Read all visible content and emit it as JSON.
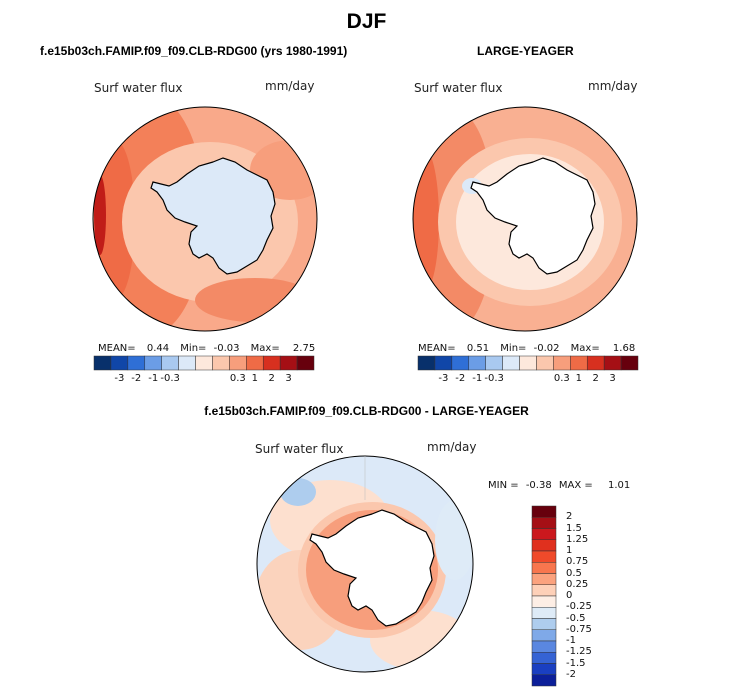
{
  "page": {
    "title": "DJF"
  },
  "chart_data": [
    {
      "type": "heatmap",
      "projection": "south-polar-stereographic",
      "header": "f.e15b03ch.FAMIP.f09_f09.CLB-RDG00 (yrs 1980-1991)",
      "title": "Surf water flux",
      "units": "mm/day",
      "stats": {
        "mean_label": "MEAN=",
        "mean": "0.44",
        "min_label": "Min=",
        "min": "-0.03",
        "max_label": "Max=",
        "max": "2.75"
      },
      "colorbar_ticks": [
        "-3",
        "-2",
        "-1",
        "-0.3",
        "0.3",
        "1",
        "2",
        "3"
      ],
      "colorbar_colors": [
        "#08306b",
        "#1046a8",
        "#2f6fd6",
        "#6b9de6",
        "#a9c9f0",
        "#dce9f8",
        "#fde8dc",
        "#fbc7ad",
        "#f79e7c",
        "#ef6b46",
        "#d7301f",
        "#a50f15",
        "#67000d"
      ],
      "region_values": {
        "antarctica": "-0.3..0",
        "southern_ocean": "0.3..1",
        "subtropics": "1..2",
        "peak": "2..3"
      }
    },
    {
      "type": "heatmap",
      "projection": "south-polar-stereographic",
      "header": "LARGE-YEAGER",
      "title": "Surf water flux",
      "units": "mm/day",
      "stats": {
        "mean_label": "MEAN=",
        "mean": "0.51",
        "min_label": "Min=",
        "min": "-0.02",
        "max_label": "Max=",
        "max": "1.68"
      },
      "colorbar_ticks": [
        "-3",
        "-2",
        "-1",
        "-0.3",
        "0.3",
        "1",
        "2",
        "3"
      ],
      "colorbar_colors": [
        "#08306b",
        "#1046a8",
        "#2f6fd6",
        "#6b9de6",
        "#a9c9f0",
        "#dce9f8",
        "#fde8dc",
        "#fbc7ad",
        "#f79e7c",
        "#ef6b46",
        "#d7301f",
        "#a50f15",
        "#67000d"
      ],
      "region_values": {
        "antarctica": "no data",
        "southern_ocean": "0.3..1",
        "subtropics": "1..2"
      }
    },
    {
      "type": "heatmap",
      "projection": "south-polar-stereographic",
      "header": "f.e15b03ch.FAMIP.f09_f09.CLB-RDG00 - LARGE-YEAGER",
      "title": "Surf water flux",
      "units": "mm/day",
      "stats": {
        "min_label": "MIN =",
        "min": "-0.38",
        "max_label": "MAX =",
        "max": "1.01"
      },
      "colorbar_ticks": [
        "2",
        "1.5",
        "1.25",
        "1",
        "0.75",
        "0.5",
        "0.25",
        "0",
        "-0.25",
        "-0.5",
        "-0.75",
        "-1",
        "-1.25",
        "-1.5",
        "-2"
      ],
      "colorbar_colors": [
        "#67000d",
        "#a50f15",
        "#cb181d",
        "#e0301e",
        "#f04a2a",
        "#f8764e",
        "#fba27e",
        "#fdd0b8",
        "#fdeee5",
        "#deebf7",
        "#aecdee",
        "#7fa9e8",
        "#5a87e0",
        "#3563d4",
        "#1a3fc1",
        "#0c1f99"
      ],
      "region_values": {
        "coastal_ring": "0.25..0.75",
        "open_ocean": "-0.25..0.25"
      }
    }
  ]
}
